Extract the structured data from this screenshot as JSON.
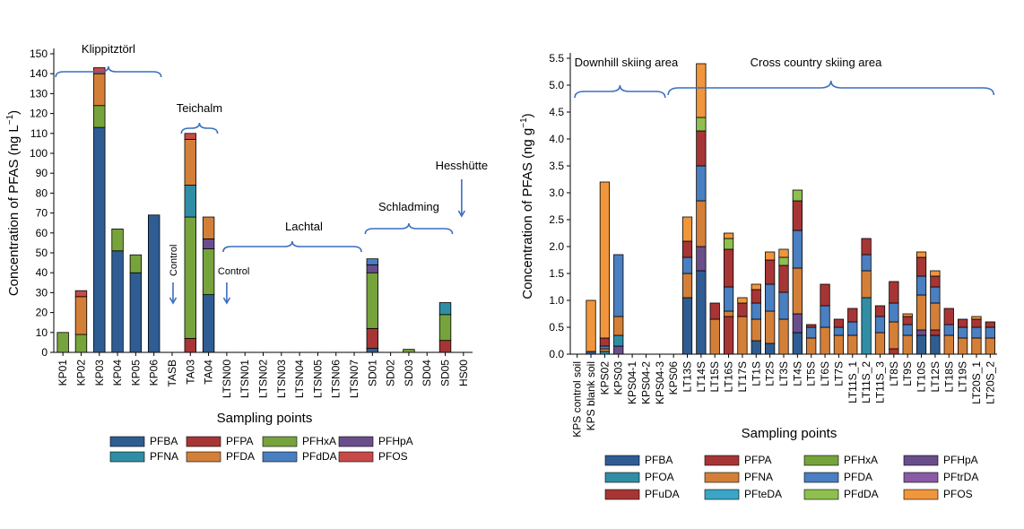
{
  "chart_data": [
    {
      "type": "bar",
      "stacked": true,
      "ylabel_main": "Concentration of PFAS (ng L",
      "ylabel_sup": "−1",
      "ylabel_end": ")",
      "xlabel": "Sampling points",
      "ylim": [
        0,
        150
      ],
      "yticks": [
        0,
        10,
        20,
        30,
        40,
        50,
        60,
        70,
        80,
        90,
        100,
        110,
        120,
        130,
        140,
        150
      ],
      "categories": [
        "KP01",
        "KP02",
        "KP03",
        "KP04",
        "KP05",
        "KP06",
        "TASB",
        "TA03",
        "TA04",
        "LTSN00",
        "LTSN01",
        "LTSN02",
        "LTSN03",
        "LTSN04",
        "LTSN05",
        "LTSN06",
        "LTSN07",
        "SD01",
        "SD02",
        "SD03",
        "SD04",
        "SD05",
        "HS00"
      ],
      "series": [
        {
          "name": "PFBA",
          "color": "#2f5d93",
          "values": [
            0,
            0,
            113,
            51,
            40,
            69,
            0,
            0,
            29,
            0,
            0,
            0,
            0,
            0,
            0,
            0,
            0,
            2,
            0,
            0,
            0,
            0,
            0
          ]
        },
        {
          "name": "PFPA",
          "color": "#a83535",
          "values": [
            0,
            0,
            0,
            0,
            0,
            0,
            0,
            7,
            0,
            0,
            0,
            0,
            0,
            0,
            0,
            0,
            0,
            10,
            0,
            0,
            0,
            6,
            0
          ]
        },
        {
          "name": "PFHxA",
          "color": "#77a33c",
          "values": [
            10,
            9,
            11,
            11,
            9,
            0,
            0,
            61,
            23,
            0,
            0,
            0,
            0,
            0,
            0,
            0,
            0,
            28,
            0,
            1.5,
            0,
            13,
            0
          ]
        },
        {
          "name": "PFHpA",
          "color": "#6a4e8c",
          "values": [
            0,
            0,
            0,
            0,
            0,
            0,
            0,
            0,
            5,
            0,
            0,
            0,
            0,
            0,
            0,
            0,
            0,
            4,
            0,
            0,
            0,
            0,
            0
          ]
        },
        {
          "name": "PFNA",
          "color": "#2f8ea6",
          "values": [
            0,
            0,
            0,
            0,
            0,
            0,
            0,
            16,
            0,
            0,
            0,
            0,
            0,
            0,
            0,
            0,
            0,
            0,
            0,
            0,
            0,
            6,
            0
          ]
        },
        {
          "name": "PFDA",
          "color": "#d47f38",
          "values": [
            0,
            19,
            16,
            0,
            0,
            0,
            0,
            23,
            11,
            0,
            0,
            0,
            0,
            0,
            0,
            0,
            0,
            0,
            0,
            0,
            0,
            0,
            0
          ]
        },
        {
          "name": "PFdDA",
          "color": "#4a7fc1",
          "values": [
            0,
            0,
            0,
            0,
            0,
            0,
            0,
            0,
            0,
            0,
            0,
            0,
            0,
            0,
            0,
            0,
            0,
            3,
            0,
            0,
            0,
            0,
            0
          ]
        },
        {
          "name": "PFOS",
          "color": "#c84a48",
          "values": [
            0,
            3,
            3,
            0,
            0,
            0,
            0,
            3,
            0,
            0,
            0,
            0,
            0,
            0,
            0,
            0,
            0,
            0,
            0,
            0,
            0,
            0,
            0
          ]
        }
      ],
      "annotations": {
        "group1": "Klippitztörl",
        "group2": "Teichalm",
        "group3": "Lachtal",
        "group4": "Schladming",
        "group5": "Hesshütte",
        "control1": "Control",
        "control2": "Control"
      }
    },
    {
      "type": "bar",
      "stacked": true,
      "ylabel_main": "Concentration of PFAS (ng g",
      "ylabel_sup": "−1",
      "ylabel_end": ")",
      "xlabel": "Sampling points",
      "ylim": [
        0,
        5.5
      ],
      "yticks": [
        "0.0",
        "0.5",
        "1.0",
        "1.5",
        "2.0",
        "2.5",
        "3.0",
        "3.5",
        "4.0",
        "4.5",
        "5.0",
        "5.5"
      ],
      "categories": [
        "KPS control soil",
        "KPS blank soil",
        "KPS02",
        "KPS03",
        "KPS04-1",
        "KPS04-2",
        "KPS04-3",
        "KPS06",
        "LT13S",
        "LT14S",
        "LT15S",
        "LT16S",
        "LT17S",
        "LT1S",
        "LT2S",
        "LT3S",
        "LT4S",
        "LT5S",
        "LT6S",
        "LT7S",
        "LT11S_1",
        "LT11S_2",
        "LT11S_3",
        "LT8S",
        "LT9S",
        "LT10S",
        "LT12S",
        "LT18S",
        "LT19S",
        "LT20S_1",
        "LT20S_2"
      ],
      "series": [
        {
          "name": "PFBA",
          "color": "#2f5d93",
          "values": [
            0,
            0.05,
            0,
            0,
            0,
            0,
            0,
            0,
            1.05,
            1.55,
            0,
            0,
            0,
            0.25,
            0.2,
            0,
            0.4,
            0,
            0,
            0,
            0,
            0,
            0,
            0,
            0,
            0.35,
            0.35,
            0,
            0,
            0,
            0
          ]
        },
        {
          "name": "PFPA",
          "color": "#a83535",
          "values": [
            0,
            0,
            0,
            0,
            0,
            0,
            0,
            0,
            0,
            0,
            0,
            0.7,
            0,
            0,
            0,
            0,
            0,
            0,
            0,
            0,
            0,
            0,
            0,
            0.1,
            0,
            0,
            0.1,
            0,
            0,
            0,
            0
          ]
        },
        {
          "name": "PFHxA",
          "color": "#77a33c",
          "values": [
            0,
            0,
            0,
            0,
            0,
            0,
            0,
            0,
            0,
            0,
            0,
            0,
            0,
            0,
            0,
            0,
            0,
            0,
            0,
            0,
            0,
            0,
            0,
            0,
            0,
            0,
            0,
            0,
            0,
            0,
            0
          ]
        },
        {
          "name": "PFHpA",
          "color": "#6a4e8c",
          "values": [
            0,
            0,
            0,
            0.15,
            0,
            0,
            0,
            0,
            0,
            0.45,
            0,
            0,
            0,
            0,
            0,
            0,
            0.35,
            0,
            0,
            0,
            0,
            0,
            0,
            0,
            0,
            0.1,
            0,
            0,
            0,
            0,
            0
          ]
        },
        {
          "name": "PFOA",
          "color": "#2f8ea6",
          "values": [
            0,
            0,
            0.05,
            0.2,
            0,
            0,
            0,
            0,
            0,
            0,
            0,
            0,
            0,
            0,
            0,
            0,
            0,
            0,
            0,
            0,
            0,
            1.05,
            0,
            0,
            0,
            0,
            0,
            0,
            0,
            0,
            0
          ]
        },
        {
          "name": "PFNA",
          "color": "#d47f38",
          "values": [
            0,
            0,
            0.05,
            0.35,
            0,
            0,
            0,
            0,
            0.45,
            0.85,
            0.65,
            0.1,
            0.7,
            0.4,
            0.6,
            0.65,
            0.85,
            0.3,
            0.5,
            0.35,
            0.35,
            0.5,
            0.4,
            0.5,
            0.35,
            0.65,
            0.5,
            0.35,
            0.3,
            0.3,
            0.3
          ]
        },
        {
          "name": "PFDA",
          "color": "#4a7fc1",
          "values": [
            0,
            0,
            0.05,
            1.15,
            0,
            0,
            0,
            0,
            0.3,
            0.65,
            0,
            0.45,
            0,
            0.3,
            0.5,
            0.5,
            0.7,
            0.2,
            0.4,
            0.15,
            0.25,
            0.3,
            0.3,
            0.35,
            0.2,
            0.35,
            0.3,
            0.2,
            0.2,
            0.2,
            0.2
          ]
        },
        {
          "name": "PFtrDA",
          "color": "#8a5aa6",
          "values": [
            0,
            0,
            0,
            0,
            0,
            0,
            0,
            0,
            0,
            0,
            0,
            0,
            0,
            0,
            0,
            0,
            0,
            0,
            0,
            0,
            0,
            0,
            0,
            0,
            0,
            0,
            0,
            0,
            0,
            0,
            0
          ]
        },
        {
          "name": "PFuDA",
          "color": "#a83535",
          "values": [
            0,
            0,
            0.15,
            0,
            0,
            0,
            0,
            0,
            0.3,
            0.65,
            0.3,
            0.7,
            0.25,
            0.25,
            0.45,
            0.5,
            0.55,
            0.05,
            0.4,
            0.15,
            0.25,
            0.3,
            0.2,
            0.4,
            0.15,
            0.35,
            0.2,
            0.3,
            0.15,
            0.15,
            0.1
          ]
        },
        {
          "name": "PFteDA",
          "color": "#3aa5c7",
          "values": [
            0,
            0,
            0,
            0,
            0,
            0,
            0,
            0,
            0,
            0,
            0,
            0,
            0,
            0,
            0,
            0,
            0,
            0,
            0,
            0,
            0,
            0,
            0,
            0,
            0,
            0,
            0,
            0,
            0,
            0,
            0
          ]
        },
        {
          "name": "PFdDA",
          "color": "#8fbf4f",
          "values": [
            0,
            0,
            0,
            0,
            0,
            0,
            0,
            0,
            0,
            0.25,
            0,
            0.2,
            0,
            0,
            0,
            0.15,
            0.2,
            0,
            0,
            0,
            0,
            0,
            0,
            0,
            0,
            0,
            0,
            0,
            0,
            0,
            0
          ]
        },
        {
          "name": "PFOS",
          "color": "#f0963c",
          "values": [
            0,
            0.95,
            2.9,
            0,
            0,
            0,
            0,
            0,
            0.45,
            1.0,
            0,
            0.1,
            0.1,
            0.1,
            0.15,
            0.15,
            0,
            0,
            0,
            0,
            0,
            0,
            0,
            0,
            0.05,
            0.1,
            0.1,
            0,
            0,
            0.05,
            0
          ]
        }
      ],
      "annotations": {
        "group1": "Downhill skiing area",
        "group2": "Cross country skiing area"
      }
    }
  ]
}
